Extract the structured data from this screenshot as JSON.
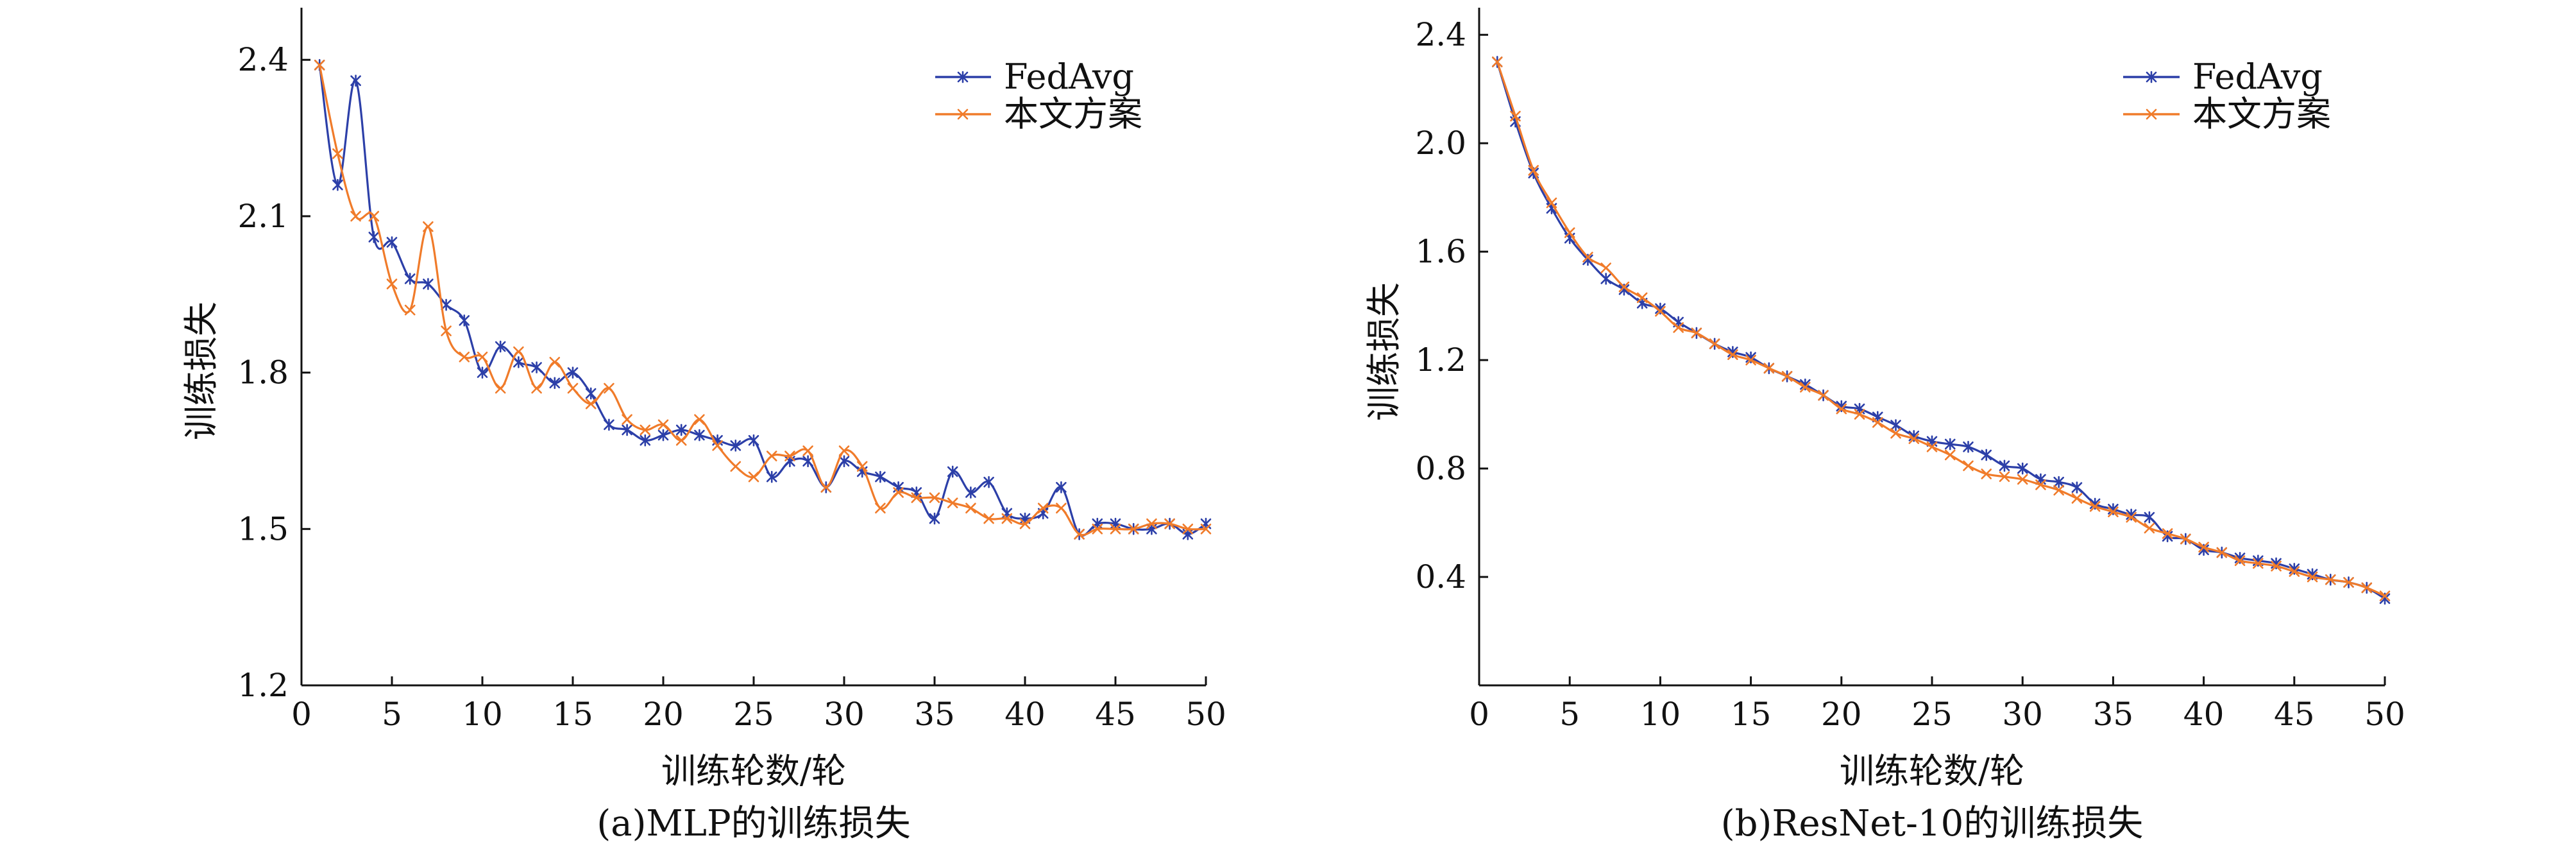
{
  "chart_data": [
    {
      "type": "line",
      "title": "",
      "caption": "(a)MLP的训练损失",
      "xlabel": "训练轮数/轮",
      "ylabel": "训练损失",
      "xlim": [
        0,
        50
      ],
      "ylim": [
        1.2,
        2.5
      ],
      "xticks": [
        0,
        5,
        10,
        15,
        20,
        25,
        30,
        35,
        40,
        45,
        50
      ],
      "yticks": [
        1.2,
        1.5,
        1.8,
        2.1,
        2.4
      ],
      "xtick_labels": [
        "0",
        "5",
        "10",
        "15",
        "20",
        "25",
        "30",
        "35",
        "40",
        "45",
        "50"
      ],
      "ytick_labels": [
        "1.2",
        "1.5",
        "1.8",
        "2.1",
        "2.4"
      ],
      "legend_position": "top-right",
      "grid": false,
      "x": [
        1,
        2,
        3,
        4,
        5,
        6,
        7,
        8,
        9,
        10,
        11,
        12,
        13,
        14,
        15,
        16,
        17,
        18,
        19,
        20,
        21,
        22,
        23,
        24,
        25,
        26,
        27,
        28,
        29,
        30,
        31,
        32,
        33,
        34,
        35,
        36,
        37,
        38,
        39,
        40,
        41,
        42,
        43,
        44,
        45,
        46,
        47,
        48,
        49,
        50
      ],
      "series": [
        {
          "name": "FedAvg",
          "color": "#2c3fa8",
          "marker": "asterisk",
          "values": [
            2.39,
            2.16,
            2.36,
            2.06,
            2.05,
            1.98,
            1.97,
            1.93,
            1.9,
            1.8,
            1.85,
            1.82,
            1.81,
            1.78,
            1.8,
            1.76,
            1.7,
            1.69,
            1.67,
            1.68,
            1.69,
            1.68,
            1.67,
            1.66,
            1.67,
            1.6,
            1.63,
            1.63,
            1.58,
            1.63,
            1.61,
            1.6,
            1.58,
            1.57,
            1.52,
            1.61,
            1.57,
            1.59,
            1.53,
            1.52,
            1.53,
            1.58,
            1.49,
            1.51,
            1.51,
            1.5,
            1.5,
            1.51,
            1.49,
            1.51
          ]
        },
        {
          "name": "本文方案",
          "color": "#f07b2a",
          "marker": "x",
          "values": [
            2.39,
            2.22,
            2.1,
            2.1,
            1.97,
            1.92,
            2.08,
            1.88,
            1.83,
            1.83,
            1.77,
            1.84,
            1.77,
            1.82,
            1.77,
            1.74,
            1.77,
            1.71,
            1.69,
            1.7,
            1.67,
            1.71,
            1.66,
            1.62,
            1.6,
            1.64,
            1.64,
            1.65,
            1.58,
            1.65,
            1.62,
            1.54,
            1.57,
            1.56,
            1.56,
            1.55,
            1.54,
            1.52,
            1.52,
            1.51,
            1.54,
            1.54,
            1.49,
            1.5,
            1.5,
            1.5,
            1.51,
            1.51,
            1.5,
            1.5
          ]
        }
      ]
    },
    {
      "type": "line",
      "title": "",
      "caption": "(b)ResNet-10的训练损失",
      "xlabel": "训练轮数/轮",
      "ylabel": "训练损失",
      "xlim": [
        0,
        50
      ],
      "ylim": [
        0.0,
        2.5
      ],
      "xticks": [
        0,
        5,
        10,
        15,
        20,
        25,
        30,
        35,
        40,
        45,
        50
      ],
      "yticks": [
        0.4,
        0.8,
        1.2,
        1.6,
        2.0,
        2.4
      ],
      "xtick_labels": [
        "0",
        "5",
        "10",
        "15",
        "20",
        "25",
        "30",
        "35",
        "40",
        "45",
        "50"
      ],
      "ytick_labels": [
        "0.4",
        "0.8",
        "1.2",
        "1.6",
        "2.0",
        "2.4"
      ],
      "legend_position": "top-right",
      "grid": false,
      "x": [
        1,
        2,
        3,
        4,
        5,
        6,
        7,
        8,
        9,
        10,
        11,
        12,
        13,
        14,
        15,
        16,
        17,
        18,
        19,
        20,
        21,
        22,
        23,
        24,
        25,
        26,
        27,
        28,
        29,
        30,
        31,
        32,
        33,
        34,
        35,
        36,
        37,
        38,
        39,
        40,
        41,
        42,
        43,
        44,
        45,
        46,
        47,
        48,
        49,
        50
      ],
      "series": [
        {
          "name": "FedAvg",
          "color": "#2c3fa8",
          "marker": "asterisk",
          "values": [
            2.3,
            2.08,
            1.89,
            1.76,
            1.65,
            1.57,
            1.5,
            1.46,
            1.41,
            1.39,
            1.34,
            1.3,
            1.26,
            1.23,
            1.21,
            1.17,
            1.14,
            1.11,
            1.07,
            1.03,
            1.02,
            0.99,
            0.96,
            0.92,
            0.9,
            0.89,
            0.88,
            0.85,
            0.81,
            0.8,
            0.76,
            0.75,
            0.73,
            0.67,
            0.65,
            0.63,
            0.62,
            0.55,
            0.54,
            0.5,
            0.49,
            0.47,
            0.46,
            0.45,
            0.43,
            0.41,
            0.39,
            0.38,
            0.36,
            0.32
          ]
        },
        {
          "name": "本文方案",
          "color": "#f07b2a",
          "marker": "x",
          "values": [
            2.3,
            2.1,
            1.9,
            1.78,
            1.67,
            1.58,
            1.54,
            1.47,
            1.43,
            1.38,
            1.32,
            1.3,
            1.26,
            1.22,
            1.2,
            1.17,
            1.14,
            1.1,
            1.07,
            1.02,
            1.0,
            0.97,
            0.93,
            0.91,
            0.88,
            0.85,
            0.81,
            0.78,
            0.77,
            0.76,
            0.74,
            0.72,
            0.69,
            0.66,
            0.64,
            0.62,
            0.58,
            0.56,
            0.54,
            0.51,
            0.49,
            0.46,
            0.45,
            0.44,
            0.42,
            0.4,
            0.39,
            0.38,
            0.36,
            0.33
          ]
        }
      ]
    }
  ]
}
